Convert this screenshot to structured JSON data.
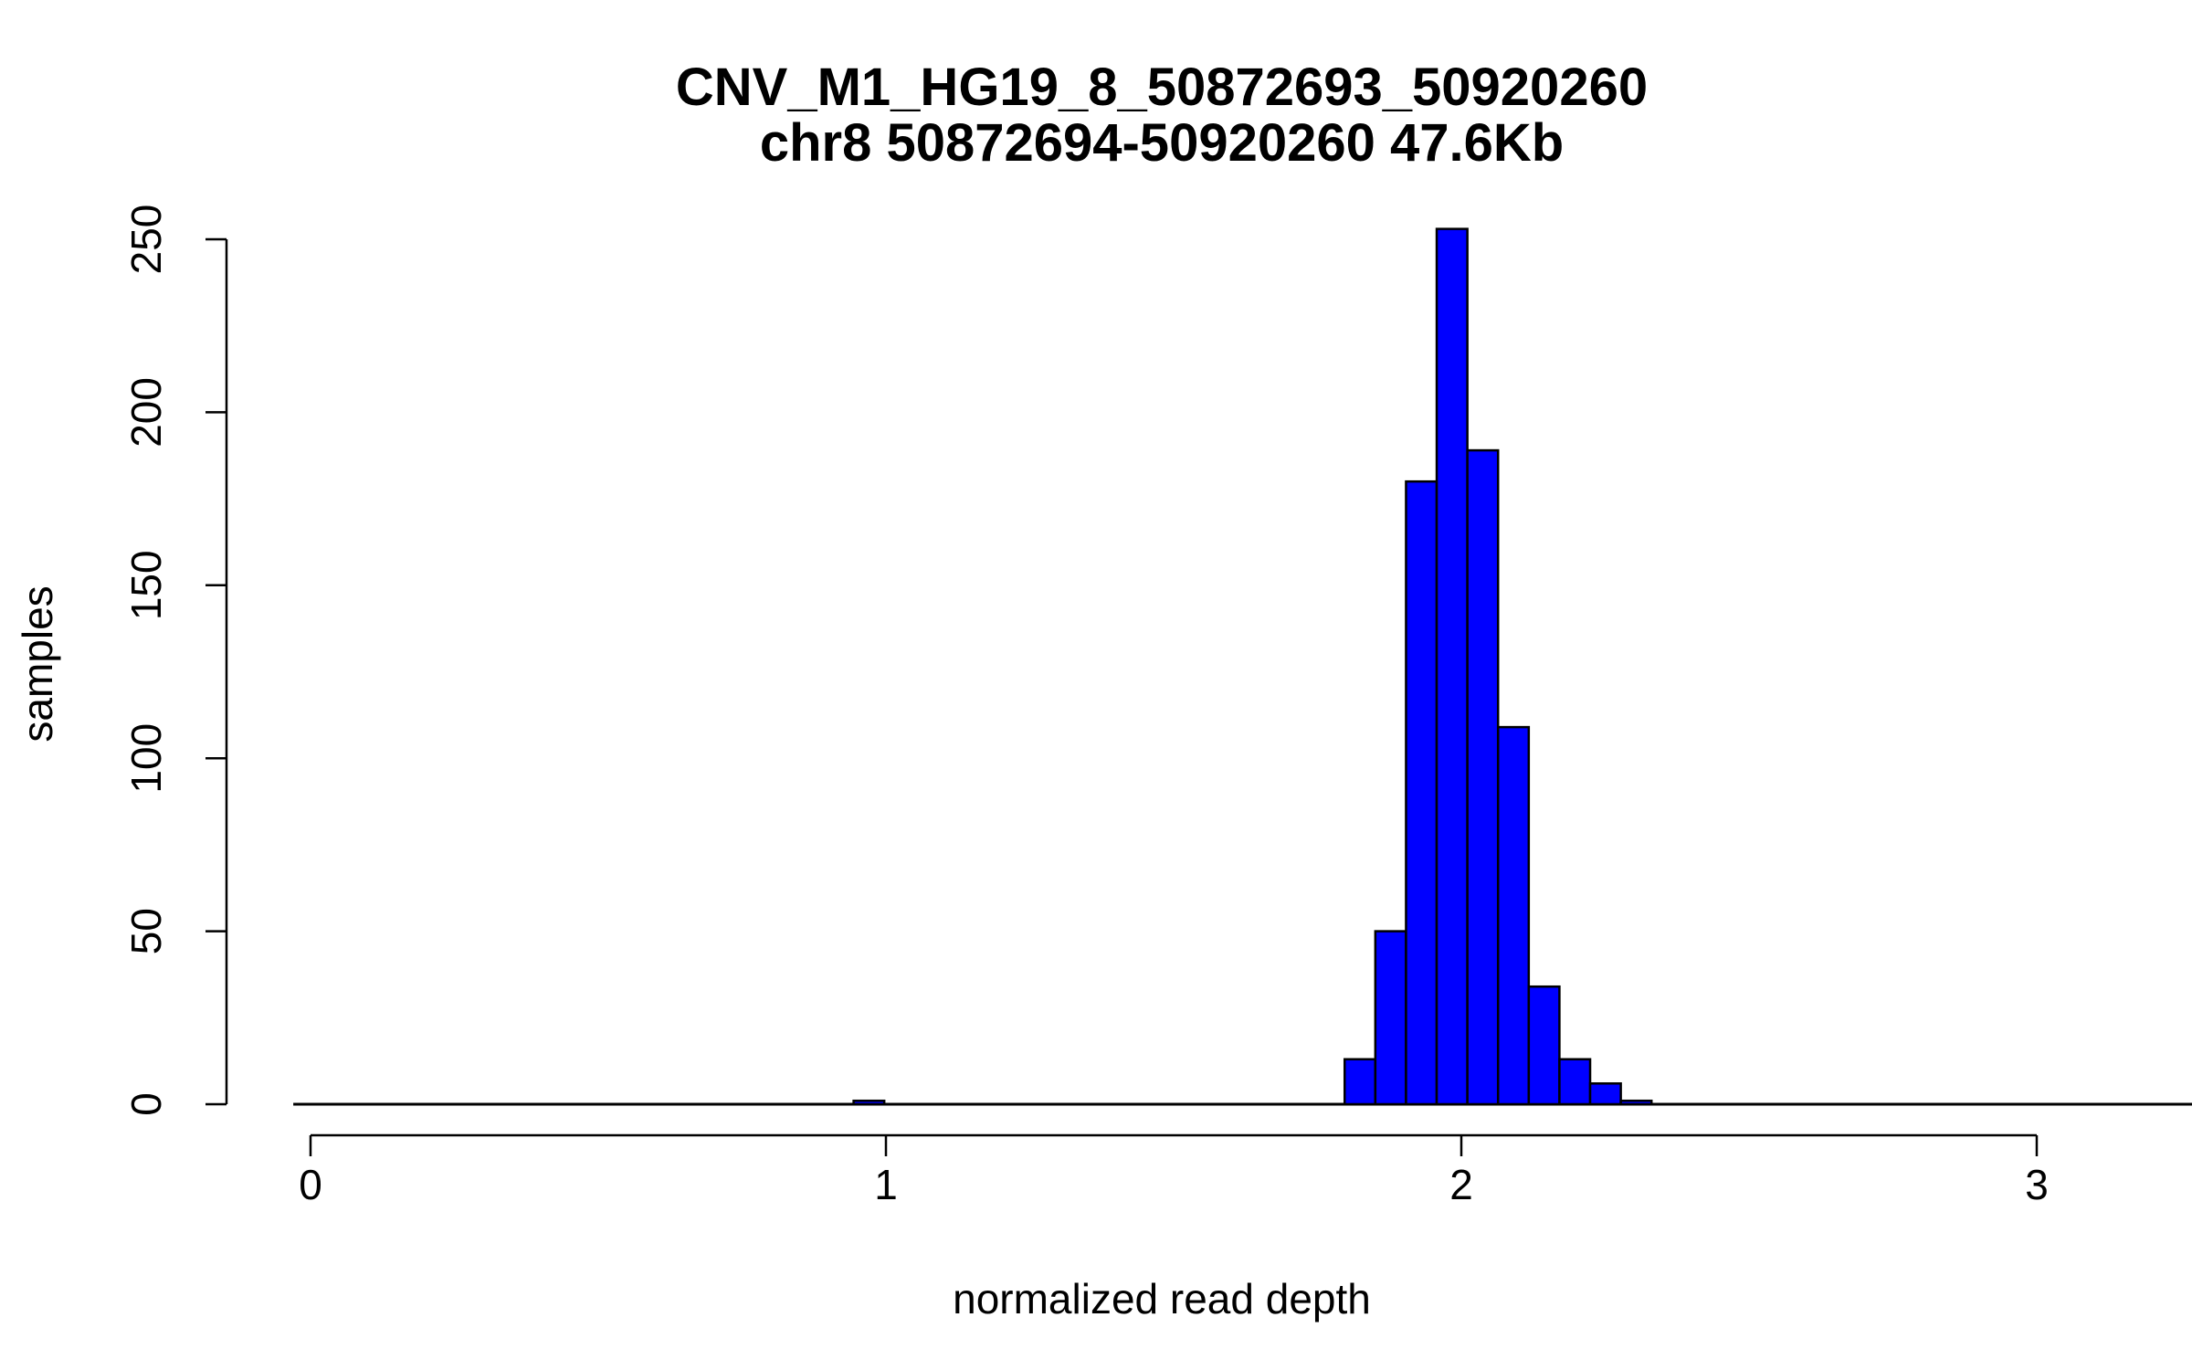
{
  "chart_data": {
    "type": "bar",
    "subtype": "histogram",
    "title": "CNV_M1_HG19_8_50872693_50920260",
    "subtitle": "chr8 50872694-50920260 47.6Kb",
    "xlabel": "normalized read depth",
    "ylabel": "samples",
    "xlim": [
      -0.03,
      3.32
    ],
    "ylim": [
      0,
      255
    ],
    "x_ticks": [
      0,
      1,
      2,
      3
    ],
    "y_ticks": [
      0,
      50,
      100,
      150,
      200,
      250
    ],
    "bin_width": 0.05333,
    "bin_start": 1.7972,
    "values": [
      13,
      50,
      180,
      253,
      189,
      109,
      34,
      13,
      6,
      1
    ],
    "extra_bins": [
      {
        "x0": 0.9438,
        "x1": 0.9971,
        "value": 1
      }
    ],
    "bar_color": "#0000ff",
    "edge_color": "#000000",
    "grid": false,
    "legend": "none"
  }
}
